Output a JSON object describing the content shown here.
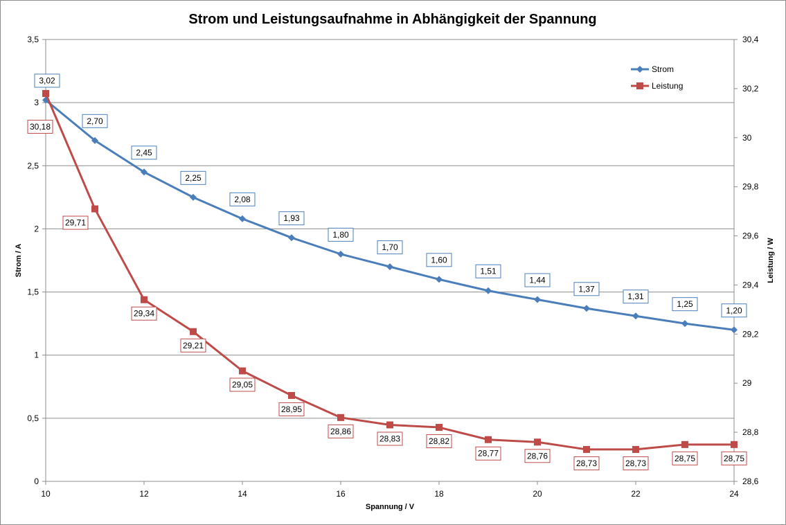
{
  "chart_data": {
    "type": "line",
    "title": "Strom und Leistungsaufnahme in Abhängigkeit der Spannung",
    "xlabel": "Spannung  / V",
    "ylabel": "Strom / A",
    "y2label": "Leistung / W",
    "x": [
      10,
      11,
      12,
      13,
      14,
      15,
      16,
      17,
      18,
      19,
      20,
      21,
      22,
      23,
      24
    ],
    "xlim": [
      10,
      24
    ],
    "ylim": [
      0,
      3.5
    ],
    "y2lim": [
      28.6,
      30.4
    ],
    "x_ticks": [
      "10",
      "12",
      "14",
      "16",
      "18",
      "20",
      "22",
      "24"
    ],
    "y_ticks": [
      "0",
      "0,5",
      "1",
      "1,5",
      "2",
      "2,5",
      "3",
      "3,5"
    ],
    "y2_ticks": [
      "28,6",
      "28,8",
      "29",
      "29,2",
      "29,4",
      "29,6",
      "29,8",
      "30",
      "30,2",
      "30,4"
    ],
    "grid": true,
    "legend_position": "top-right",
    "series": [
      {
        "name": "Strom",
        "axis": "left",
        "color": "#4a7ebb",
        "marker": "diamond",
        "values": [
          3.02,
          2.7,
          2.45,
          2.25,
          2.08,
          1.93,
          1.8,
          1.7,
          1.6,
          1.51,
          1.44,
          1.37,
          1.31,
          1.25,
          1.2
        ],
        "labels": [
          "3,02",
          "2,70",
          "2,45",
          "2,25",
          "2,08",
          "1,93",
          "1,80",
          "1,70",
          "1,60",
          "1,51",
          "1,44",
          "1,37",
          "1,31",
          "1,25",
          "1,20"
        ]
      },
      {
        "name": "Leistung",
        "axis": "right",
        "color": "#be4b48",
        "marker": "square",
        "values": [
          30.18,
          29.71,
          29.34,
          29.21,
          29.05,
          28.95,
          28.86,
          28.83,
          28.82,
          28.77,
          28.76,
          28.73,
          28.73,
          28.75,
          28.75
        ],
        "labels": [
          "30,18",
          "29,71",
          "29,34",
          "29,21",
          "29,05",
          "28,95",
          "28,86",
          "28,83",
          "28,82",
          "28,77",
          "28,76",
          "28,73",
          "28,73",
          "28,75",
          "28,75"
        ]
      }
    ]
  }
}
